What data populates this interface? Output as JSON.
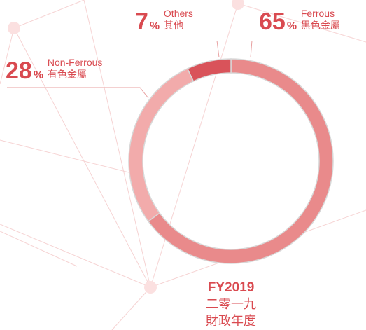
{
  "chart_data": {
    "type": "pie",
    "donut": true,
    "categories": [
      "Ferrous",
      "Non-Ferrous",
      "Others"
    ],
    "categories_zh": [
      "黑色金屬",
      "有色金屬",
      "其他"
    ],
    "values": [
      65,
      28,
      7
    ],
    "unit": "%",
    "colors": [
      "#e98a8b",
      "#f2abab",
      "#d9535a"
    ],
    "center_text": [
      "FY2019",
      "二零一九",
      "財政年度"
    ]
  }
}
